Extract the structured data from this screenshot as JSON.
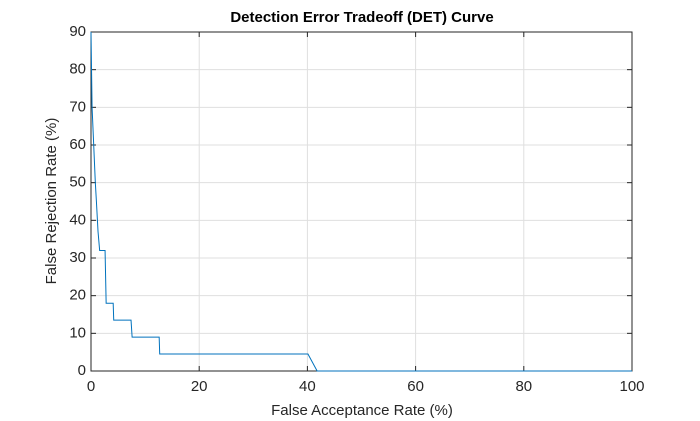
{
  "chart_data": {
    "type": "line",
    "title": "Detection Error Tradeoff (DET) Curve",
    "x_label": "False Acceptance Rate (%)",
    "y_label": "False Rejection Rate (%)",
    "x": [
      0,
      0.2,
      0.5,
      0.8,
      1.0,
      1.3,
      1.6,
      2.6,
      2.8,
      4.1,
      4.2,
      7.4,
      7.6,
      12.6,
      12.7,
      40.1,
      41.8,
      100
    ],
    "series": [
      {
        "name": "DET",
        "color": "#0072bd",
        "values": [
          90,
          70,
          60,
          50,
          45,
          37,
          32,
          32,
          18,
          18,
          13.5,
          13.5,
          9,
          9,
          4.5,
          4.5,
          0,
          0
        ]
      }
    ],
    "xlim": [
      0,
      100
    ],
    "ylim": [
      0,
      90
    ],
    "xticks": [
      0,
      20,
      40,
      60,
      80,
      100
    ],
    "yticks": [
      0,
      10,
      20,
      30,
      40,
      50,
      60,
      70,
      80,
      90
    ],
    "grid": true
  }
}
